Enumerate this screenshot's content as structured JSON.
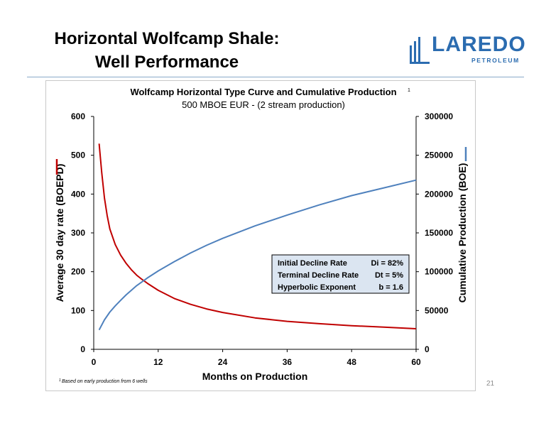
{
  "slide": {
    "title_line1": "Horizontal Wolfcamp Shale:",
    "title_line2": "Well Performance",
    "page_number": "21"
  },
  "logo": {
    "name": "LAREDO",
    "sub": "PETROLEUM",
    "color": "#2b6cb0"
  },
  "chart_data": {
    "type": "line",
    "title": "Wolfcamp Horizontal Type Curve and Cumulative Production",
    "title_superscript": "1",
    "subtitle": "500 MBOE EUR - (2 stream production)",
    "xlabel": "Months on Production",
    "ylabel_left": "Average 30 day rate (BOEPD)",
    "ylabel_right": "Cumulative Production (BOE)",
    "xlim": [
      0,
      60
    ],
    "ylim_left": [
      0,
      600
    ],
    "ylim_right": [
      0,
      300000
    ],
    "x_ticks": [
      "0",
      "12",
      "24",
      "36",
      "48",
      "60"
    ],
    "y_left_ticks": [
      "0",
      "100",
      "200",
      "300",
      "400",
      "500",
      "600"
    ],
    "y_right_ticks": [
      "0",
      "50000",
      "100000",
      "150000",
      "200000",
      "250000",
      "300000"
    ],
    "grid": false,
    "series": [
      {
        "axis": "left",
        "color": "#c00000",
        "x": [
          1,
          1.5,
          2,
          2.5,
          3,
          4,
          5,
          6,
          7,
          8,
          9,
          10,
          12,
          15,
          18,
          21,
          24,
          30,
          36,
          42,
          48,
          54,
          60
        ],
        "y": [
          530,
          455,
          390,
          345,
          310,
          270,
          243,
          222,
          205,
          191,
          180,
          170,
          152,
          131,
          116,
          104,
          95,
          81,
          72,
          66,
          61,
          57,
          53
        ]
      },
      {
        "axis": "right",
        "color": "#4f81bd",
        "x": [
          1,
          2,
          3,
          4,
          5,
          6,
          8,
          10,
          12,
          15,
          18,
          21,
          24,
          30,
          36,
          42,
          48,
          54,
          60
        ],
        "y": [
          25000,
          38000,
          48000,
          56000,
          63000,
          70000,
          82000,
          92000,
          101000,
          113000,
          124000,
          134000,
          143000,
          159000,
          173000,
          186000,
          198000,
          208000,
          218000
        ]
      }
    ],
    "annotation": {
      "rows": [
        {
          "label": "Initial Decline Rate",
          "value": "Di = 82%"
        },
        {
          "label": "Terminal Decline Rate",
          "value": "Dt = 5%"
        },
        {
          "label": "Hyperbolic Exponent",
          "value": "b = 1.6"
        }
      ],
      "background": "#dbe5f1"
    },
    "footnote": "Based on early production from 6 wells",
    "footnote_superscript": "1"
  }
}
